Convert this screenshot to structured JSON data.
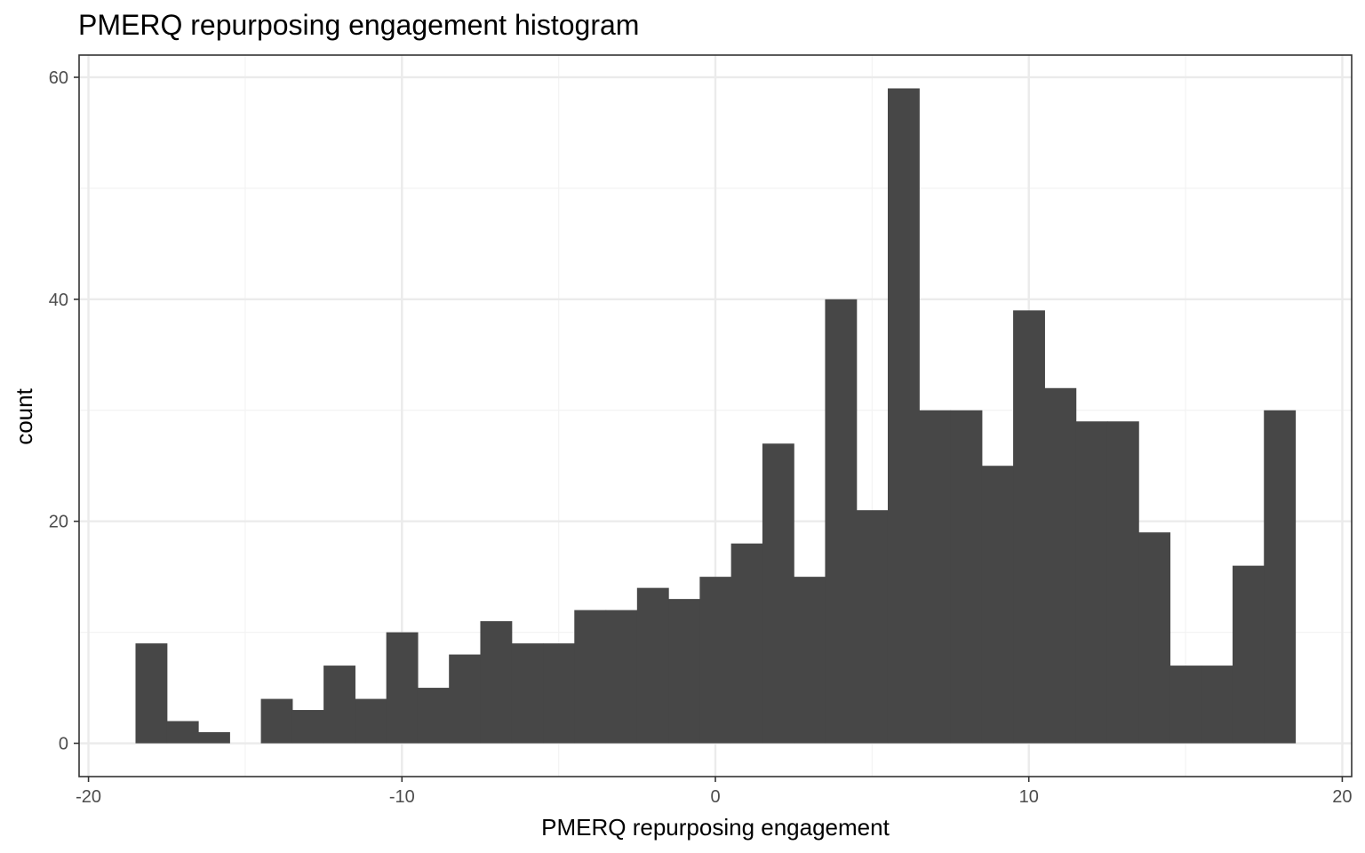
{
  "chart_data": {
    "type": "bar",
    "title": "PMERQ repurposing engagement histogram",
    "xlabel": "PMERQ repurposing engagement",
    "ylabel": "count",
    "xlim": [
      -20.3,
      20.3
    ],
    "ylim": [
      -3,
      62
    ],
    "x_ticks": [
      -20,
      -10,
      0,
      10,
      20
    ],
    "x_tick_labels": [
      "-20",
      "-10",
      "0",
      "10",
      "20"
    ],
    "y_ticks": [
      0,
      20,
      40,
      60
    ],
    "y_tick_labels": [
      "0",
      "20",
      "40",
      "60"
    ],
    "y_minor_ticks": [
      10,
      30,
      50
    ],
    "x_minor_ticks": [
      -15,
      -5,
      5,
      15
    ],
    "grid": true,
    "bin_width": 1,
    "bins": [
      {
        "x": -18,
        "count": 9
      },
      {
        "x": -17,
        "count": 2
      },
      {
        "x": -16,
        "count": 1
      },
      {
        "x": -15,
        "count": 0
      },
      {
        "x": -14,
        "count": 4
      },
      {
        "x": -13,
        "count": 3
      },
      {
        "x": -12,
        "count": 7
      },
      {
        "x": -11,
        "count": 4
      },
      {
        "x": -10,
        "count": 10
      },
      {
        "x": -9,
        "count": 5
      },
      {
        "x": -8,
        "count": 8
      },
      {
        "x": -7,
        "count": 11
      },
      {
        "x": -6,
        "count": 9
      },
      {
        "x": -5,
        "count": 9
      },
      {
        "x": -4,
        "count": 12
      },
      {
        "x": -3,
        "count": 12
      },
      {
        "x": -2,
        "count": 14
      },
      {
        "x": -1,
        "count": 13
      },
      {
        "x": 0,
        "count": 15
      },
      {
        "x": 1,
        "count": 18
      },
      {
        "x": 2,
        "count": 27
      },
      {
        "x": 3,
        "count": 15
      },
      {
        "x": 4,
        "count": 40
      },
      {
        "x": 5,
        "count": 21
      },
      {
        "x": 6,
        "count": 59
      },
      {
        "x": 7,
        "count": 30
      },
      {
        "x": 8,
        "count": 30
      },
      {
        "x": 9,
        "count": 25
      },
      {
        "x": 10,
        "count": 39
      },
      {
        "x": 11,
        "count": 32
      },
      {
        "x": 12,
        "count": 29
      },
      {
        "x": 13,
        "count": 29
      },
      {
        "x": 14,
        "count": 19
      },
      {
        "x": 15,
        "count": 7
      },
      {
        "x": 16,
        "count": 7
      },
      {
        "x": 17,
        "count": 16
      },
      {
        "x": 18,
        "count": 30
      }
    ],
    "colors": {
      "bar": "#474747",
      "panel_border": "#333333",
      "grid_major": "#ebebeb",
      "grid_minor": "#f3f3f3",
      "tick": "#333333"
    }
  }
}
